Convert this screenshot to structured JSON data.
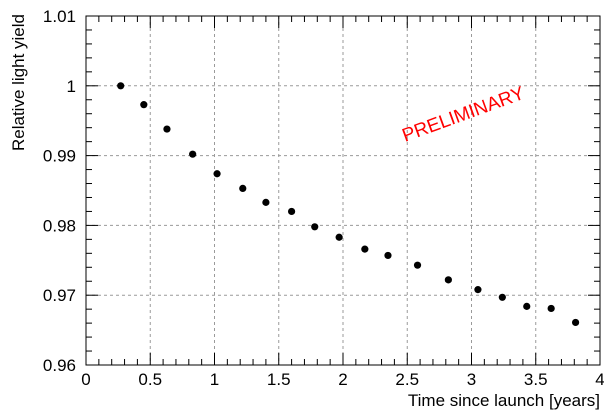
{
  "chart_data": {
    "type": "scatter",
    "title": "",
    "xlabel": "Time since launch [years]",
    "ylabel": "Relative light yield",
    "xlim": [
      0,
      4
    ],
    "ylim": [
      0.96,
      1.01
    ],
    "grid": true,
    "x_ticks_major": [
      0,
      0.5,
      1,
      1.5,
      2,
      2.5,
      3,
      3.5,
      4
    ],
    "x_tick_labels": [
      "0",
      "0.5",
      "1",
      "1.5",
      "2",
      "2.5",
      "3",
      "3.5",
      "4"
    ],
    "y_ticks_major": [
      0.96,
      0.97,
      0.98,
      0.99,
      1.0,
      1.01
    ],
    "y_tick_labels": [
      "0.96",
      "0.97",
      "0.98",
      "0.99",
      "1",
      "1.01"
    ],
    "annotation": {
      "text": "PRELIMINARY",
      "color": "#ff0000"
    },
    "series": [
      {
        "marker_color": "#000000",
        "x": [
          0.27,
          0.45,
          0.63,
          0.83,
          1.02,
          1.22,
          1.4,
          1.6,
          1.78,
          1.97,
          2.17,
          2.35,
          2.58,
          2.82,
          3.05,
          3.24,
          3.43,
          3.62,
          3.81
        ],
        "y": [
          1.0,
          0.9973,
          0.9938,
          0.9902,
          0.9874,
          0.9853,
          0.9833,
          0.982,
          0.9798,
          0.9783,
          0.9766,
          0.9757,
          0.9743,
          0.9722,
          0.9708,
          0.9697,
          0.9684,
          0.9681,
          0.9661
        ]
      }
    ]
  }
}
